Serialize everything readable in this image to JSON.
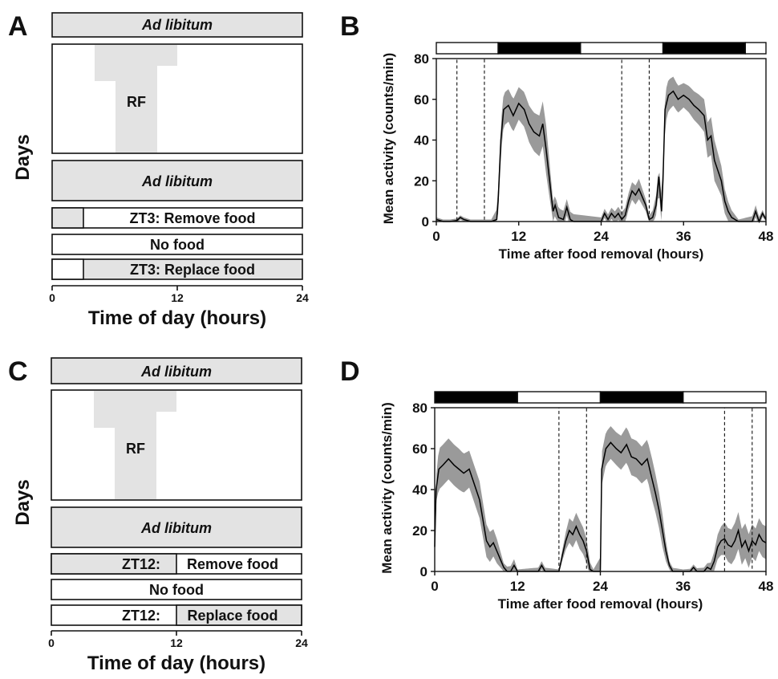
{
  "panels": {
    "A": {
      "letter": "A"
    },
    "B": {
      "letter": "B"
    },
    "C": {
      "letter": "C"
    },
    "D": {
      "letter": "D"
    }
  },
  "schedule_common": {
    "ylabel": "Days",
    "xlabel": "Time of day (hours)",
    "ticks": [
      "0",
      "12",
      "24"
    ],
    "ad_libitum": "Ad libitum",
    "rf": "RF",
    "no_food": "No food"
  },
  "schedule_A": {
    "remove": "ZT3: Remove food",
    "replace": "ZT3: Replace food",
    "zt_hour": 3
  },
  "schedule_C": {
    "remove_zt": "ZT12:",
    "remove_text": "Remove food",
    "replace_zt": "ZT12:",
    "replace_text": "Replace food",
    "zt_hour": 12
  },
  "chart_data": [
    {
      "panel": "B",
      "type": "line",
      "xlabel": "Time after food removal (hours)",
      "ylabel": "Mean activity (counts/min)",
      "xlim": [
        0,
        48
      ],
      "ylim": [
        0,
        80
      ],
      "xticks": [
        0,
        12,
        24,
        36,
        48
      ],
      "yticks": [
        0,
        20,
        40,
        60,
        80
      ],
      "light_dark_bar": [
        {
          "start": 0,
          "end": 9,
          "phase": "light"
        },
        {
          "start": 9,
          "end": 21,
          "phase": "dark"
        },
        {
          "start": 21,
          "end": 33,
          "phase": "light"
        },
        {
          "start": 33,
          "end": 45,
          "phase": "dark"
        },
        {
          "start": 45,
          "end": 48,
          "phase": "light"
        }
      ],
      "dashed_windows": [
        [
          3,
          7
        ],
        [
          27,
          31
        ]
      ],
      "mean": [
        [
          0,
          1
        ],
        [
          1,
          0
        ],
        [
          2,
          0
        ],
        [
          3,
          0.5
        ],
        [
          3.5,
          2
        ],
        [
          4,
          1
        ],
        [
          5,
          0
        ],
        [
          6,
          0
        ],
        [
          7,
          0
        ],
        [
          8,
          0
        ],
        [
          8.8,
          1
        ],
        [
          9,
          10
        ],
        [
          9.4,
          40
        ],
        [
          9.8,
          55
        ],
        [
          10.5,
          57
        ],
        [
          11.2,
          52
        ],
        [
          12,
          58
        ],
        [
          12.8,
          55
        ],
        [
          13.5,
          48
        ],
        [
          14.2,
          44
        ],
        [
          15,
          42
        ],
        [
          15.5,
          48
        ],
        [
          16,
          35
        ],
        [
          16.5,
          20
        ],
        [
          17,
          5
        ],
        [
          17.3,
          8
        ],
        [
          17.8,
          2
        ],
        [
          18.5,
          1
        ],
        [
          19,
          7
        ],
        [
          19.5,
          1
        ],
        [
          20,
          0
        ],
        [
          21,
          0
        ],
        [
          22,
          0
        ],
        [
          23,
          0
        ],
        [
          24,
          0
        ],
        [
          24.5,
          4
        ],
        [
          25,
          1
        ],
        [
          25.5,
          4
        ],
        [
          26,
          2
        ],
        [
          26.5,
          4
        ],
        [
          27,
          1
        ],
        [
          27.5,
          3
        ],
        [
          28,
          10
        ],
        [
          28.5,
          15
        ],
        [
          29,
          13
        ],
        [
          29.5,
          16
        ],
        [
          30,
          12
        ],
        [
          30.5,
          8
        ],
        [
          31,
          1
        ],
        [
          31.5,
          2
        ],
        [
          32,
          8
        ],
        [
          32.4,
          22
        ],
        [
          32.8,
          5
        ],
        [
          33,
          20
        ],
        [
          33.3,
          55
        ],
        [
          33.8,
          62
        ],
        [
          34.5,
          64
        ],
        [
          35.2,
          60
        ],
        [
          36,
          62
        ],
        [
          36.8,
          60
        ],
        [
          37.5,
          57
        ],
        [
          38.2,
          55
        ],
        [
          39,
          52
        ],
        [
          39.5,
          40
        ],
        [
          40,
          42
        ],
        [
          40.5,
          30
        ],
        [
          41,
          25
        ],
        [
          41.5,
          20
        ],
        [
          42,
          10
        ],
        [
          42.5,
          5
        ],
        [
          43,
          2
        ],
        [
          43.5,
          1
        ],
        [
          44,
          0
        ],
        [
          45,
          0
        ],
        [
          46,
          0
        ],
        [
          46.5,
          5
        ],
        [
          47,
          0
        ],
        [
          47.5,
          4
        ],
        [
          48,
          1
        ]
      ],
      "sem": [
        [
          0,
          1
        ],
        [
          3,
          1
        ],
        [
          4,
          1
        ],
        [
          8,
          1
        ],
        [
          9.4,
          8
        ],
        [
          12,
          8
        ],
        [
          15,
          10
        ],
        [
          16,
          12
        ],
        [
          17,
          5
        ],
        [
          19,
          4
        ],
        [
          24,
          2
        ],
        [
          26,
          3
        ],
        [
          28,
          4
        ],
        [
          29.5,
          5
        ],
        [
          31,
          2
        ],
        [
          32.4,
          6
        ],
        [
          33.3,
          8
        ],
        [
          36,
          6
        ],
        [
          39,
          8
        ],
        [
          40.5,
          10
        ],
        [
          42,
          6
        ],
        [
          44,
          1
        ],
        [
          46.5,
          3
        ],
        [
          48,
          1
        ]
      ]
    },
    {
      "panel": "D",
      "type": "line",
      "xlabel": "Time after food removal (hours)",
      "ylabel": "Mean activity (counts/min)",
      "xlim": [
        0,
        48
      ],
      "ylim": [
        0,
        80
      ],
      "xticks": [
        0,
        12,
        24,
        36,
        48
      ],
      "yticks": [
        0,
        20,
        40,
        60,
        80
      ],
      "light_dark_bar": [
        {
          "start": 0,
          "end": 12,
          "phase": "dark"
        },
        {
          "start": 12,
          "end": 24,
          "phase": "light"
        },
        {
          "start": 24,
          "end": 36,
          "phase": "dark"
        },
        {
          "start": 36,
          "end": 48,
          "phase": "light"
        }
      ],
      "dashed_windows": [
        [
          18,
          22
        ],
        [
          42,
          46
        ]
      ],
      "mean": [
        [
          0,
          12
        ],
        [
          0.2,
          40
        ],
        [
          0.6,
          50
        ],
        [
          1.2,
          52
        ],
        [
          2,
          55
        ],
        [
          2.8,
          52
        ],
        [
          3.5,
          50
        ],
        [
          4.2,
          48
        ],
        [
          5,
          50
        ],
        [
          5.8,
          42
        ],
        [
          6.5,
          35
        ],
        [
          7,
          25
        ],
        [
          7.5,
          15
        ],
        [
          8,
          12
        ],
        [
          8.5,
          14
        ],
        [
          9,
          10
        ],
        [
          9.5,
          6
        ],
        [
          10,
          2
        ],
        [
          10.5,
          0
        ],
        [
          11,
          0
        ],
        [
          11.5,
          3
        ],
        [
          12,
          0
        ],
        [
          13,
          0
        ],
        [
          14,
          0
        ],
        [
          15,
          0
        ],
        [
          15.5,
          3
        ],
        [
          16,
          0
        ],
        [
          17,
          0
        ],
        [
          18,
          0
        ],
        [
          18.5,
          8
        ],
        [
          19,
          15
        ],
        [
          19.5,
          20
        ],
        [
          20,
          18
        ],
        [
          20.5,
          22
        ],
        [
          21,
          18
        ],
        [
          21.5,
          15
        ],
        [
          22,
          10
        ],
        [
          22.5,
          1
        ],
        [
          23,
          0
        ],
        [
          23.5,
          0
        ],
        [
          24,
          0
        ],
        [
          24.2,
          50
        ],
        [
          24.8,
          60
        ],
        [
          25.5,
          63
        ],
        [
          26.3,
          60
        ],
        [
          27,
          58
        ],
        [
          27.8,
          62
        ],
        [
          28.5,
          56
        ],
        [
          29.2,
          55
        ],
        [
          30,
          52
        ],
        [
          30.8,
          55
        ],
        [
          31.5,
          45
        ],
        [
          32,
          38
        ],
        [
          32.5,
          30
        ],
        [
          33,
          20
        ],
        [
          33.5,
          10
        ],
        [
          34,
          3
        ],
        [
          34.5,
          0
        ],
        [
          35,
          0
        ],
        [
          36,
          0
        ],
        [
          37,
          0
        ],
        [
          37.5,
          2
        ],
        [
          38,
          0
        ],
        [
          39,
          0
        ],
        [
          39.5,
          2
        ],
        [
          40,
          1
        ],
        [
          40.5,
          5
        ],
        [
          41,
          12
        ],
        [
          41.5,
          15
        ],
        [
          42,
          16
        ],
        [
          42.5,
          13
        ],
        [
          43,
          12
        ],
        [
          43.5,
          15
        ],
        [
          44,
          20
        ],
        [
          44.5,
          12
        ],
        [
          45,
          15
        ],
        [
          45.5,
          10
        ],
        [
          46,
          15
        ],
        [
          46.5,
          13
        ],
        [
          47,
          18
        ],
        [
          47.5,
          15
        ],
        [
          48,
          14
        ]
      ],
      "sem": [
        [
          0,
          4
        ],
        [
          0.6,
          10
        ],
        [
          2,
          10
        ],
        [
          3.5,
          10
        ],
        [
          5,
          9
        ],
        [
          6.5,
          9
        ],
        [
          7.5,
          8
        ],
        [
          9,
          6
        ],
        [
          10,
          2
        ],
        [
          11.5,
          3
        ],
        [
          12,
          1
        ],
        [
          15.5,
          2
        ],
        [
          18,
          1
        ],
        [
          19.5,
          6
        ],
        [
          21,
          7
        ],
        [
          22,
          6
        ],
        [
          23,
          1
        ],
        [
          24.2,
          8
        ],
        [
          26.3,
          8
        ],
        [
          28.5,
          9
        ],
        [
          30,
          9
        ],
        [
          31.5,
          10
        ],
        [
          33,
          8
        ],
        [
          34,
          2
        ],
        [
          36,
          1
        ],
        [
          39.5,
          2
        ],
        [
          41,
          6
        ],
        [
          42,
          8
        ],
        [
          44,
          9
        ],
        [
          46,
          8
        ],
        [
          48,
          8
        ]
      ]
    }
  ]
}
